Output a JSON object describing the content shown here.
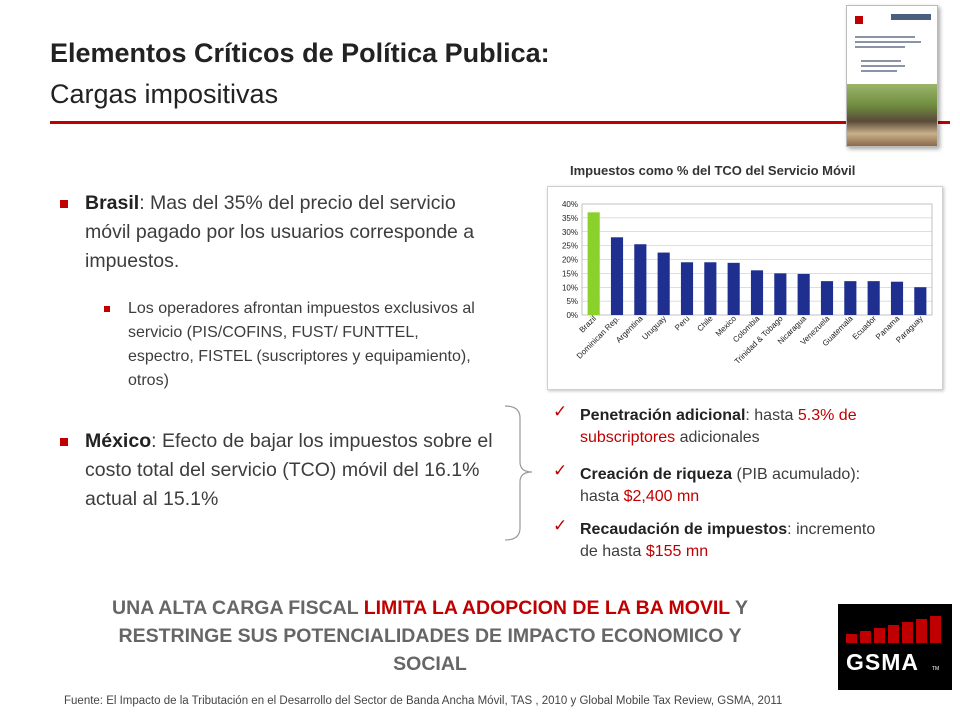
{
  "title": {
    "line1": "Elementos Críticos de Política Publica:",
    "line2": "Cargas impositivas"
  },
  "left": {
    "brasil": {
      "label": "Brasil",
      "text": ": Mas del 35% del precio del servicio móvil pagado por los usuarios corresponde a impuestos."
    },
    "operadores": {
      "text": "Los operadores afrontan impuestos exclusivos al servicio (PIS/COFINS, FUST/ FUNTTEL, espectro, FISTEL (suscriptores y equipamiento), otros)"
    },
    "mexico": {
      "label": "México",
      "text": ": Efecto de bajar los impuestos sobre el costo total del servicio (TCO) móvil del 16.1% actual al 15.1%"
    }
  },
  "checks": [
    {
      "bold": "Penetración adicional",
      "pre": ": hasta ",
      "red": "5.3% de subscriptores",
      "post": " adicionales"
    },
    {
      "bold": "Creación de riqueza",
      "pre": " (PIB acumulado): hasta ",
      "red": "$2,400 mn",
      "post": ""
    },
    {
      "bold": "Recaudación de impuestos",
      "pre": ": incremento de hasta ",
      "red": "$155 mn",
      "post": ""
    }
  ],
  "bottom": {
    "part1": "UNA ALTA CARGA FISCAL ",
    "part2_red": "LIMITA LA ADOPCION DE LA BA MOVIL",
    "part3": " Y RESTRINGE SUS POTENCIALIDADES DE IMPACTO ECONOMICO Y SOCIAL"
  },
  "footnote": "Fuente: El Impacto de la Tributación en el Desarrollo del Sector de Banda Ancha Móvil, TAS , 2010 y Global Mobile Tax Review, GSMA, 2011",
  "logo": {
    "text": "GSMA",
    "tm": "TM"
  },
  "colors": {
    "accent": "#c00000",
    "bar": "#1f2f8f",
    "highlight_bar": "#8bd12b"
  },
  "icons": {
    "bullet": "square",
    "check": "checkmark"
  },
  "chart_data": {
    "type": "bar",
    "title": "Impuestos como % del TCO del Servicio Móvil",
    "categories": [
      "Brazil",
      "Dominican Rep.",
      "Argentina",
      "Uruguay",
      "Peru",
      "Chile",
      "Mexico",
      "Colombia",
      "Trinidad & Tobago",
      "Nicaragua",
      "Venezuela",
      "Guatemala",
      "Ecuador",
      "Panama",
      "Paraguay"
    ],
    "values": [
      37,
      28,
      25.5,
      22.5,
      19,
      19,
      18.8,
      16.1,
      15,
      14.8,
      12.2,
      12.2,
      12.2,
      12,
      10
    ],
    "highlight": "Brazil",
    "yticks": [
      "0%",
      "5%",
      "10%",
      "15%",
      "20%",
      "25%",
      "30%",
      "35%",
      "40%"
    ],
    "ylim": [
      0,
      40
    ],
    "grid": true,
    "xlabel": "",
    "ylabel": ""
  }
}
